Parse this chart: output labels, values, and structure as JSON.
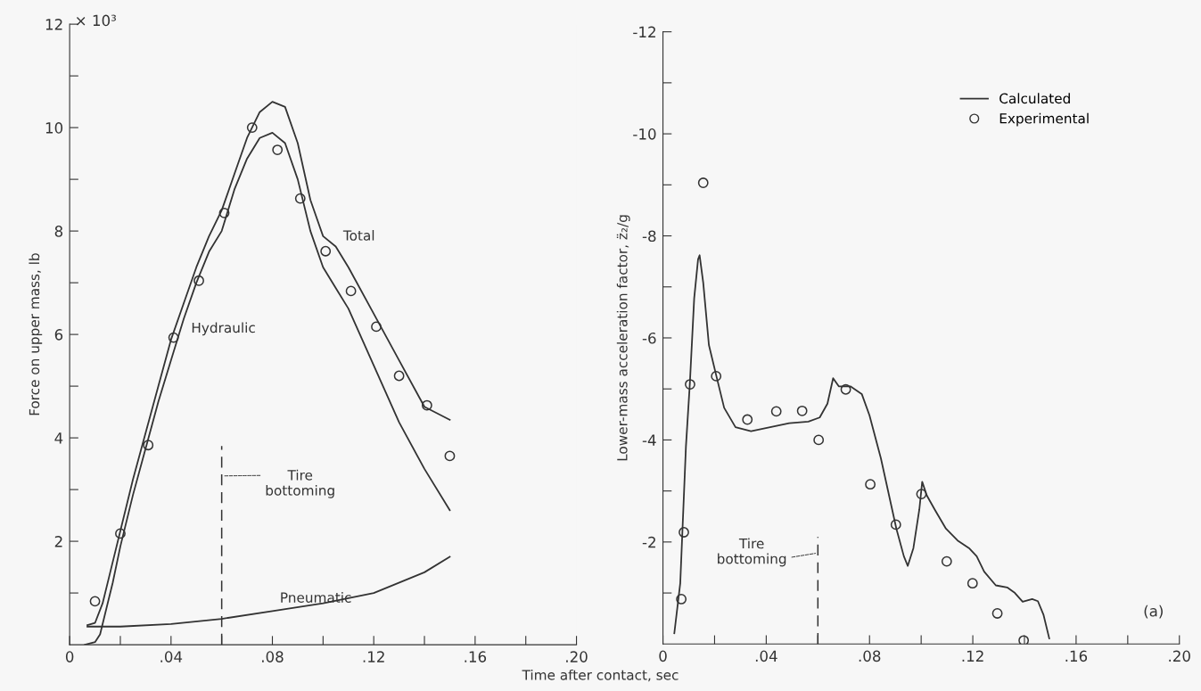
{
  "chart_data": [
    {
      "type": "line",
      "xlabel": "Time after contact, sec",
      "ylabel": "Force on upper mass, lb",
      "xlim": [
        0,
        0.2
      ],
      "ylim": [
        0,
        12
      ],
      "xticks": [
        {
          "value": 0,
          "label": "0"
        },
        {
          "value": 0.02,
          "label": null
        },
        {
          "value": 0.04,
          "label": ".04"
        },
        {
          "value": 0.06,
          "label": null
        },
        {
          "value": 0.08,
          "label": ".08"
        },
        {
          "value": 0.1,
          "label": null
        },
        {
          "value": 0.12,
          "label": ".12"
        },
        {
          "value": 0.14,
          "label": null
        },
        {
          "value": 0.16,
          "label": ".16"
        },
        {
          "value": 0.18,
          "label": null
        },
        {
          "value": 0.2,
          "label": ".20"
        }
      ],
      "yticks": [
        {
          "value": 1,
          "label": null
        },
        2,
        {
          "value": 3,
          "label": null
        },
        4,
        {
          "value": 5,
          "label": null
        },
        6,
        {
          "value": 7,
          "label": null
        },
        8,
        {
          "value": 9,
          "label": null
        },
        10,
        {
          "value": 11,
          "label": null
        },
        12
      ],
      "annotations": [
        "× 10³"
      ],
      "grid": false,
      "legend": false,
      "series": [
        {
          "name": "Total",
          "color": "#333333",
          "x": [
            0.007,
            0.01,
            0.013,
            0.016,
            0.02,
            0.025,
            0.03,
            0.035,
            0.04,
            0.045,
            0.05,
            0.055,
            0.06,
            0.065,
            0.07,
            0.075,
            0.08,
            0.085,
            0.09,
            0.095,
            0.1,
            0.105,
            0.11,
            0.12,
            0.13,
            0.14,
            0.15
          ],
          "values": [
            0.38,
            0.42,
            0.8,
            1.4,
            2.2,
            3.2,
            4.1,
            5.0,
            5.9,
            6.6,
            7.3,
            7.9,
            8.4,
            9.1,
            9.8,
            10.3,
            10.5,
            10.4,
            9.7,
            8.6,
            7.9,
            7.7,
            7.3,
            6.4,
            5.5,
            4.6,
            4.35
          ]
        },
        {
          "name": "Hydraulic",
          "color": "#333333",
          "x": [
            0.006,
            0.01,
            0.012,
            0.014,
            0.017,
            0.02,
            0.025,
            0.03,
            0.035,
            0.04,
            0.045,
            0.05,
            0.055,
            0.06,
            0.065,
            0.07,
            0.075,
            0.08,
            0.085,
            0.09,
            0.095,
            0.1,
            0.105,
            0.11,
            0.12,
            0.13,
            0.14,
            0.15
          ],
          "values": [
            0,
            0.05,
            0.2,
            0.6,
            1.2,
            1.9,
            2.9,
            3.8,
            4.7,
            5.5,
            6.3,
            7.0,
            7.6,
            8.0,
            8.8,
            9.4,
            9.8,
            9.9,
            9.7,
            9.0,
            8.0,
            7.3,
            6.9,
            6.5,
            5.4,
            4.3,
            3.4,
            2.6
          ]
        },
        {
          "name": "Pneumatic",
          "color": "#333333",
          "x": [
            0.007,
            0.02,
            0.04,
            0.06,
            0.08,
            0.1,
            0.12,
            0.14,
            0.15
          ],
          "values": [
            0.35,
            0.35,
            0.4,
            0.5,
            0.65,
            0.8,
            1.0,
            1.4,
            1.7
          ]
        },
        {
          "type": "scatter",
          "marker": "circle",
          "color": "#333333",
          "x": [
            0.01,
            0.02,
            0.031,
            0.041,
            0.051,
            0.061,
            0.072,
            0.082,
            0.091,
            0.101,
            0.111,
            0.121,
            0.13,
            0.141,
            0.15
          ],
          "values": [
            0.84,
            2.15,
            3.86,
            5.94,
            7.04,
            8.35,
            10.0,
            9.57,
            8.63,
            7.61,
            6.84,
            6.15,
            5.2,
            4.63,
            3.65
          ]
        }
      ],
      "ref_lines": [
        {
          "axis": "x",
          "value": 0.06,
          "label": "Tire\nbottoming",
          "line_style": "dashed"
        }
      ]
    },
    {
      "type": "line",
      "ylabel": "Lower-mass acceleration factor, z̈₂/g",
      "xlim": [
        0,
        0.2
      ],
      "ylim": [
        0,
        -12
      ],
      "xticks": [
        {
          "value": 0,
          "label": "0"
        },
        {
          "value": 0.02,
          "label": null
        },
        {
          "value": 0.04,
          "label": ".04"
        },
        {
          "value": 0.06,
          "label": null
        },
        {
          "value": 0.08,
          "label": ".08"
        },
        {
          "value": 0.1,
          "label": null
        },
        {
          "value": 0.12,
          "label": ".12"
        },
        {
          "value": 0.14,
          "label": null
        },
        {
          "value": 0.16,
          "label": ".16"
        },
        {
          "value": 0.18,
          "label": null
        },
        {
          "value": 0.2,
          "label": ".20"
        }
      ],
      "yticks": [
        {
          "value": -1,
          "label": null
        },
        {
          "value": -2,
          "label": "-2"
        },
        {
          "value": -3,
          "label": null
        },
        {
          "value": -4,
          "label": "-4"
        },
        {
          "value": -5,
          "label": null
        },
        {
          "value": -6,
          "label": "-6"
        },
        {
          "value": -7,
          "label": null
        },
        {
          "value": -8,
          "label": "-8"
        },
        {
          "value": -9,
          "label": null
        },
        {
          "value": -10,
          "label": "-10"
        },
        {
          "value": -11,
          "label": null
        },
        {
          "value": -12,
          "label": "-12"
        }
      ],
      "grid": false,
      "legend": "top right",
      "annotations": [
        "(a)"
      ],
      "series": [
        {
          "name": "Calculated",
          "color": "#333333",
          "x": [
            0.0044,
            0.0067,
            0.0089,
            0.0104,
            0.0121,
            0.0136,
            0.0142,
            0.0156,
            0.0178,
            0.0207,
            0.0237,
            0.0281,
            0.0341,
            0.0415,
            0.0489,
            0.0563,
            0.0607,
            0.0637,
            0.0659,
            0.0681,
            0.0726,
            0.077,
            0.08,
            0.0844,
            0.0874,
            0.0904,
            0.0933,
            0.0948,
            0.097,
            0.0993,
            0.1004,
            0.1022,
            0.1052,
            0.1096,
            0.1141,
            0.1185,
            0.1215,
            0.1244,
            0.1289,
            0.1333,
            0.1363,
            0.1393,
            0.143,
            0.1452,
            0.1474,
            0.1496
          ],
          "values": [
            -0.21,
            -1.19,
            -3.87,
            -5.09,
            -6.78,
            -7.54,
            -7.62,
            -7.08,
            -5.86,
            -5.25,
            -4.63,
            -4.25,
            -4.17,
            -4.25,
            -4.33,
            -4.36,
            -4.44,
            -4.71,
            -5.21,
            -5.05,
            -5.05,
            -4.9,
            -4.48,
            -3.64,
            -2.95,
            -2.26,
            -1.72,
            -1.53,
            -1.88,
            -2.64,
            -3.18,
            -2.91,
            -2.64,
            -2.26,
            -2.03,
            -1.88,
            -1.72,
            -1.42,
            -1.15,
            -1.11,
            -1.0,
            -0.83,
            -0.88,
            -0.84,
            -0.57,
            -0.11
          ]
        },
        {
          "name": "Experimental",
          "type": "scatter",
          "marker": "circle",
          "color": "#333333",
          "x": [
            0.0071,
            0.0081,
            0.0105,
            0.0156,
            0.0206,
            0.0327,
            0.0439,
            0.0539,
            0.0603,
            0.0708,
            0.0803,
            0.0902,
            0.1001,
            0.1099,
            0.1199,
            0.1295,
            0.1397
          ],
          "values": [
            -0.88,
            -2.19,
            -5.09,
            -9.04,
            -5.25,
            -4.4,
            -4.56,
            -4.57,
            -4.0,
            -4.99,
            -3.13,
            -2.34,
            -2.94,
            -1.62,
            -1.19,
            -0.6,
            -0.07
          ]
        }
      ],
      "ref_lines": [
        {
          "axis": "x",
          "value": 0.06,
          "label": "Tire\nbottoming",
          "line_style": "dashed"
        }
      ]
    }
  ]
}
